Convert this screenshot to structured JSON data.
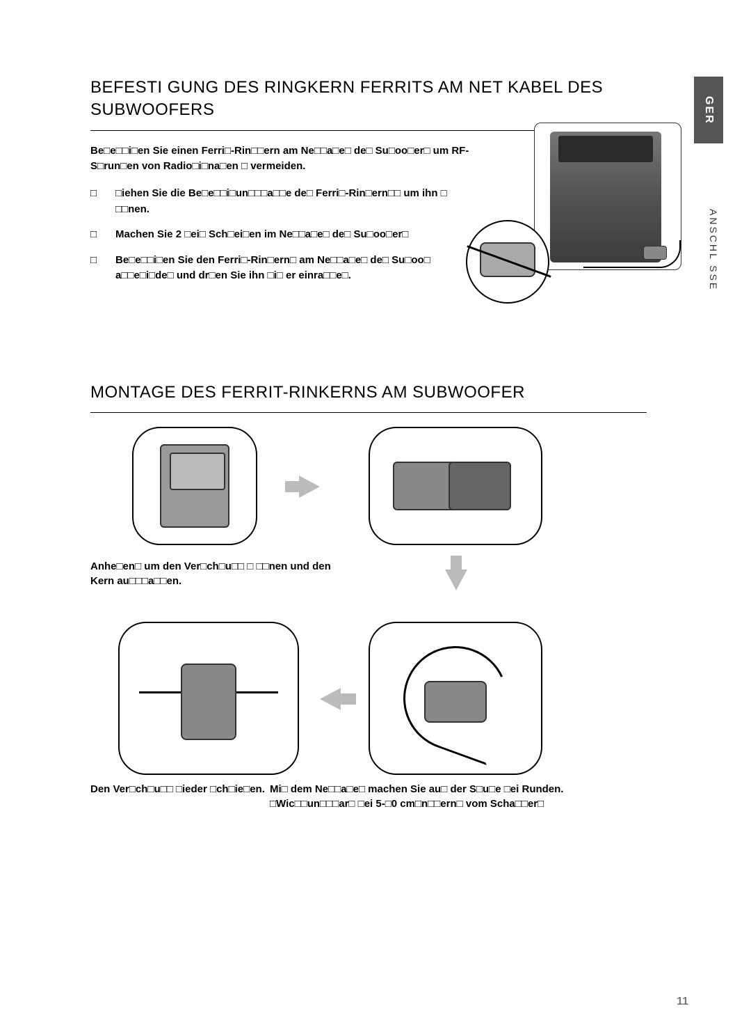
{
  "lang_tab": "GER",
  "side_label": "ANSCHL SSE",
  "page_number": "11",
  "section1": {
    "title_line1": "BEFESTI GUNG DES RINGKERN FERRITS AM NET  KABEL DES",
    "title_line2": "SUBWOOFERS",
    "intro": "Be□e□□i□en Sie einen Ferri□-Rin□□ern am Ne□□a□e□ de□ Su□oo□er□ um RF-S□run□en von Radio□i□na□en □ vermeiden.",
    "steps": [
      "□iehen Sie die Be□e□□i□un□□□a□□e de□ Ferri□-Rin□ern□□ um ihn □ □□nen.",
      "Machen Sie 2 □ei□ Sch□ei□en im Ne□□a□e□ de□ Su□oo□er□",
      "Be□e□□i□en Sie den Ferri□-Rin□ern□ am Ne□□a□e□ de□ Su□oo□ a□□e□i□de□ und dr□en Sie ihn □i□ er einra□□e□."
    ]
  },
  "section2": {
    "title": "MONTAGE DES FERRIT-RINKERNS AM SUBWOOFER",
    "caption1": "Anhe□en□ um den Ver□ch□u□□ □ □□nen und den Kern au□□□a□□en.",
    "caption4": "Den Ver□ch□u□□ □ieder □ch□ie□en.",
    "caption3": "Mi□ dem Ne□□a□e□ machen Sie au□ der S□u□e □ei Runden. □Wic□□un□□□ar□ □ei 5-□0 cm□n□□ern□ vom Scha□□er□"
  },
  "colors": {
    "tab_bg": "#555555",
    "arrow": "#bbbbbb",
    "text": "#000000",
    "pagenum": "#777777"
  }
}
